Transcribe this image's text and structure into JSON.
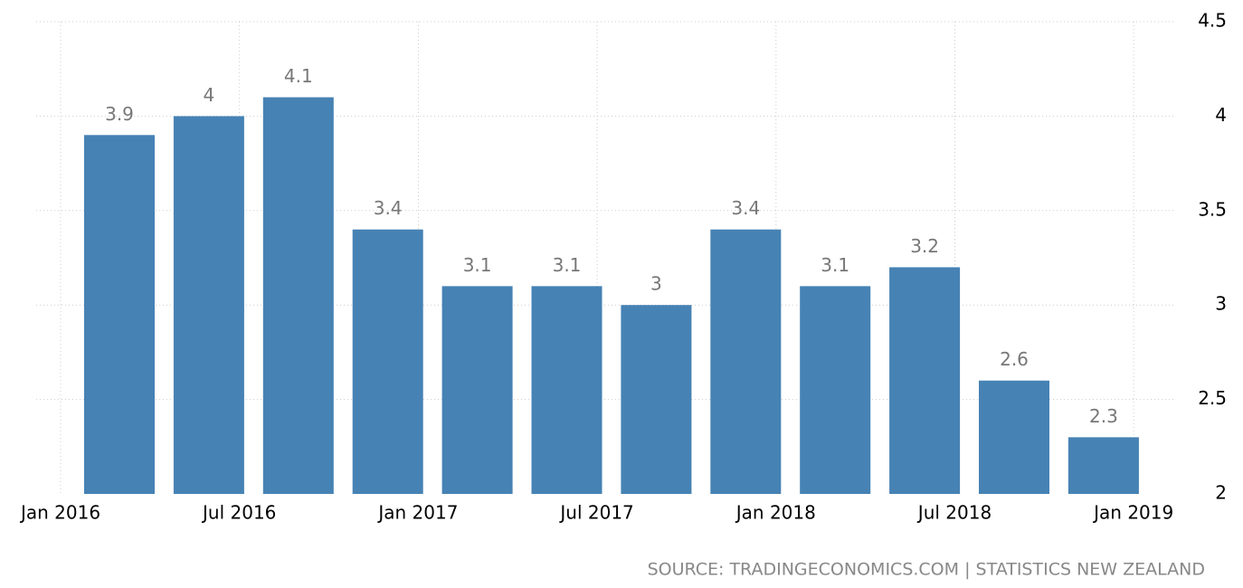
{
  "chart_data": {
    "type": "bar",
    "categories": [
      null,
      null,
      null,
      null,
      null,
      null,
      null,
      null,
      null,
      null,
      null,
      null
    ],
    "values": [
      3.9,
      4,
      4.1,
      3.4,
      3.1,
      3.1,
      3,
      3.4,
      3.1,
      3.2,
      2.6,
      2.3
    ],
    "color": "#4682b4",
    "x_labels": [
      "Jan 2016",
      "Jul 2016",
      "Jan 2017",
      "Jul 2017",
      "Jan 2018",
      "Jul 2018",
      "Jan 2019"
    ],
    "ylim": [
      2,
      4.5
    ],
    "yticks": [
      2,
      2.5,
      3,
      3.5,
      4,
      4.5
    ],
    "grid": true,
    "source": "SOURCE: TRADINGECONOMICS.COM | STATISTICS NEW ZEALAND"
  }
}
